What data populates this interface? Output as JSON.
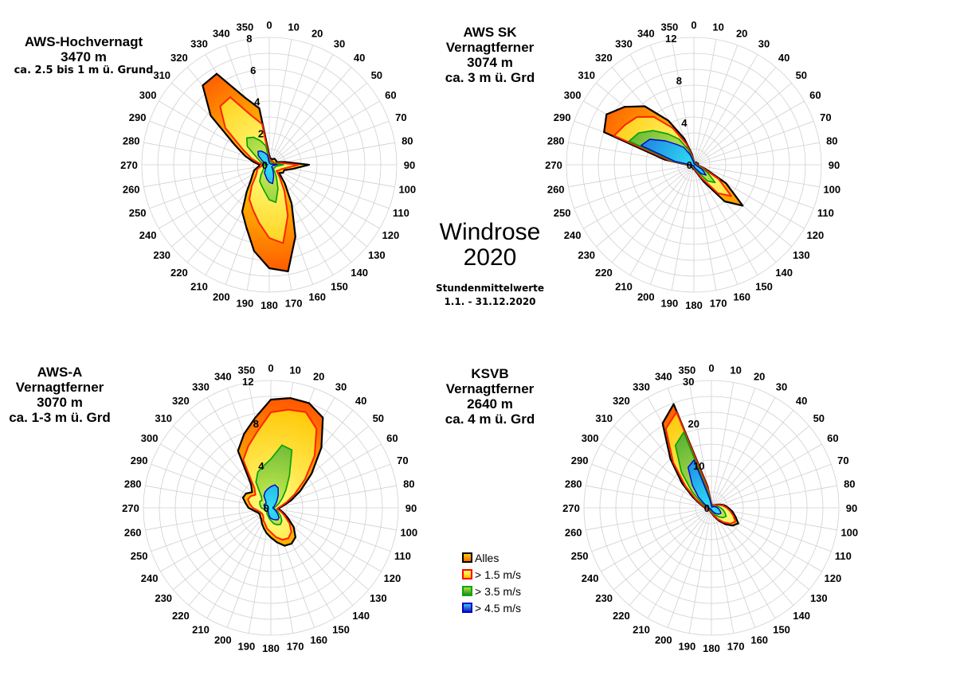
{
  "title": "Windrose",
  "year": "2020",
  "subtitle_line1": "Stundenmittelwerte",
  "subtitle_line2": "1.1. - 31.12.2020",
  "legend": [
    {
      "label": "Alles",
      "fill": "#ffa500",
      "stroke": "#000000"
    },
    {
      "label": "> 1.5 m/s",
      "fill": "#ffe000",
      "stroke": "#ff0000"
    },
    {
      "label": "> 3.5 m/s",
      "fill": "#44aa22",
      "stroke": "#00aa00"
    },
    {
      "label": "> 4.5 m/s",
      "fill": "#1133dd",
      "stroke": "#0000cc"
    }
  ],
  "chart_data": [
    {
      "type": "radar",
      "station": [
        "AWS-Hochvernagt",
        "3470 m",
        "ca. 2.5 bis 1 m ü. Grund"
      ],
      "direction_labels": [
        "0",
        "10",
        "20",
        "30",
        "40",
        "50",
        "60",
        "70",
        "80",
        "90",
        "100",
        "110",
        "120",
        "130",
        "140",
        "150",
        "160",
        "170",
        "180",
        "190",
        "200",
        "210",
        "220",
        "230",
        "240",
        "250",
        "260",
        "270",
        "280",
        "290",
        "300",
        "310",
        "320",
        "330",
        "340",
        "350"
      ],
      "rmax": 8,
      "radial_ticks": [
        "0",
        "2",
        "4",
        "6",
        "8"
      ],
      "series": [
        {
          "name": "Alles",
          "values": [
            0.6,
            0.4,
            0.4,
            0.4,
            0.5,
            0.5,
            0.5,
            0.5,
            1.0,
            2.5,
            1.5,
            1.0,
            1.0,
            0.8,
            1.5,
            2.8,
            4.8,
            6.8,
            6.5,
            5.5,
            4.2,
            3.4,
            2.2,
            1.5,
            1.2,
            1.0,
            0.7,
            0.6,
            1.0,
            1.6,
            2.5,
            4.8,
            6.5,
            6.6,
            4.5,
            3.6
          ]
        },
        {
          "name": "> 1.5 m/s",
          "values": [
            0.4,
            0.3,
            0.3,
            0.3,
            0.3,
            0.3,
            0.3,
            0.3,
            0.7,
            1.8,
            1.1,
            0.8,
            0.7,
            0.6,
            1.0,
            1.9,
            3.4,
            5.0,
            4.6,
            3.7,
            3.0,
            2.5,
            1.7,
            1.1,
            0.9,
            0.8,
            0.5,
            0.4,
            0.7,
            1.2,
            1.9,
            3.6,
            4.8,
            4.9,
            3.3,
            2.6
          ]
        },
        {
          "name": "> 3.5 m/s",
          "values": [
            0.2,
            0.2,
            0.2,
            0.2,
            0.2,
            0.2,
            0.2,
            0.2,
            0.4,
            0.9,
            0.5,
            0.4,
            0.4,
            0.3,
            0.5,
            0.9,
            1.6,
            2.4,
            2.2,
            1.7,
            1.4,
            1.2,
            0.8,
            0.5,
            0.4,
            0.4,
            0.3,
            0.2,
            0.4,
            0.6,
            0.9,
            1.8,
            2.2,
            2.0,
            1.6,
            1.2
          ]
        },
        {
          "name": "> 4.5 m/s",
          "values": [
            0.1,
            0.1,
            0.1,
            0.1,
            0.1,
            0.1,
            0.1,
            0.1,
            0.2,
            0.5,
            0.3,
            0.2,
            0.2,
            0.2,
            0.3,
            0.5,
            0.8,
            1.2,
            1.1,
            0.9,
            0.7,
            0.6,
            0.4,
            0.3,
            0.2,
            0.2,
            0.2,
            0.1,
            0.2,
            0.3,
            0.5,
            0.9,
            1.1,
            1.0,
            0.8,
            0.6
          ]
        }
      ]
    },
    {
      "type": "radar",
      "station": [
        "AWS SK",
        "Vernagtferner",
        "3074 m",
        "ca. 3 m ü. Grd"
      ],
      "direction_labels": [
        "0",
        "10",
        "20",
        "30",
        "40",
        "50",
        "60",
        "70",
        "80",
        "90",
        "100",
        "110",
        "120",
        "130",
        "140",
        "150",
        "160",
        "170",
        "180",
        "190",
        "200",
        "210",
        "220",
        "230",
        "240",
        "250",
        "260",
        "270",
        "280",
        "290",
        "300",
        "310",
        "320",
        "330",
        "340",
        "350"
      ],
      "rmax": 12,
      "radial_ticks": [
        "0",
        "4",
        "8",
        "12"
      ],
      "series": [
        {
          "name": "Alles",
          "values": [
            0.3,
            0.2,
            0.2,
            0.2,
            0.3,
            0.3,
            0.3,
            0.4,
            0.4,
            0.3,
            0.5,
            1.2,
            3.5,
            6.0,
            4.5,
            1.8,
            0.8,
            0.5,
            0.4,
            0.4,
            0.3,
            0.3,
            0.3,
            0.3,
            0.3,
            0.3,
            0.4,
            0.6,
            2.8,
            9.0,
            9.5,
            8.5,
            7.2,
            4.8,
            2.6,
            1.0
          ]
        },
        {
          "name": "> 1.5 m/s",
          "values": [
            0.2,
            0.2,
            0.2,
            0.2,
            0.2,
            0.2,
            0.2,
            0.3,
            0.3,
            0.2,
            0.4,
            0.9,
            2.7,
            4.6,
            3.5,
            1.4,
            0.6,
            0.4,
            0.3,
            0.3,
            0.2,
            0.2,
            0.2,
            0.2,
            0.2,
            0.2,
            0.3,
            0.5,
            2.3,
            8.0,
            7.5,
            7.0,
            5.9,
            4.0,
            2.1,
            0.8
          ]
        },
        {
          "name": "> 3.5 m/s",
          "values": [
            0.2,
            0.1,
            0.1,
            0.1,
            0.2,
            0.2,
            0.2,
            0.2,
            0.2,
            0.2,
            0.3,
            0.5,
            1.5,
            2.6,
            2.0,
            0.8,
            0.4,
            0.3,
            0.2,
            0.2,
            0.2,
            0.2,
            0.2,
            0.2,
            0.2,
            0.2,
            0.2,
            0.4,
            2.0,
            6.5,
            6.0,
            5.0,
            3.8,
            2.8,
            1.5,
            0.5
          ]
        },
        {
          "name": "> 4.5 m/s",
          "values": [
            0.1,
            0.1,
            0.1,
            0.1,
            0.1,
            0.1,
            0.1,
            0.1,
            0.1,
            0.1,
            0.2,
            0.3,
            0.9,
            1.5,
            1.1,
            0.5,
            0.3,
            0.2,
            0.1,
            0.1,
            0.1,
            0.1,
            0.1,
            0.1,
            0.1,
            0.1,
            0.2,
            0.3,
            1.8,
            5.3,
            4.8,
            3.5,
            2.5,
            1.9,
            1.0,
            0.3
          ]
        }
      ]
    },
    {
      "type": "radar",
      "station": [
        "AWS-A",
        "Vernagtferner",
        "3070 m",
        "ca. 1-3 m ü. Grd"
      ],
      "direction_labels": [
        "0",
        "10",
        "20",
        "30",
        "40",
        "50",
        "60",
        "70",
        "80",
        "90",
        "100",
        "110",
        "120",
        "130",
        "140",
        "150",
        "160",
        "170",
        "180",
        "190",
        "200",
        "210",
        "220",
        "230",
        "240",
        "250",
        "260",
        "270",
        "280",
        "290",
        "300",
        "310",
        "320",
        "330",
        "340",
        "350"
      ],
      "rmax": 12,
      "radial_ticks": [
        "0",
        "4",
        "8",
        "12"
      ],
      "series": [
        {
          "name": "Alles",
          "values": [
            10.2,
            10.5,
            10.5,
            9.8,
            7.4,
            5.0,
            3.2,
            2.0,
            1.2,
            0.8,
            0.8,
            1.2,
            1.8,
            2.8,
            3.6,
            3.9,
            3.8,
            3.3,
            2.8,
            2.4,
            2.0,
            1.7,
            1.4,
            1.3,
            1.2,
            1.3,
            1.6,
            2.1,
            2.4,
            2.8,
            2.7,
            2.3,
            2.9,
            6.2,
            7.4,
            8.6
          ]
        },
        {
          "name": "> 1.5 m/s",
          "values": [
            9.0,
            9.4,
            9.6,
            8.6,
            6.4,
            4.2,
            2.6,
            1.6,
            1.0,
            0.7,
            0.6,
            1.0,
            1.5,
            2.3,
            3.0,
            3.3,
            3.2,
            2.8,
            2.3,
            2.0,
            1.6,
            1.4,
            1.1,
            1.0,
            1.0,
            1.1,
            1.3,
            1.7,
            2.0,
            2.3,
            2.2,
            1.9,
            2.4,
            5.2,
            6.2,
            7.3
          ]
        },
        {
          "name": "> 3.5 m/s",
          "values": [
            4.6,
            6.0,
            5.8,
            3.5,
            2.2,
            1.4,
            0.9,
            0.6,
            0.4,
            0.3,
            0.3,
            0.5,
            0.8,
            1.2,
            1.6,
            1.8,
            1.7,
            1.5,
            1.2,
            1.0,
            0.8,
            0.7,
            0.6,
            0.5,
            0.5,
            0.6,
            0.7,
            0.9,
            1.0,
            1.1,
            1.2,
            1.1,
            1.4,
            2.8,
            3.6,
            4.0
          ]
        },
        {
          "name": "> 4.5 m/s",
          "values": [
            2.0,
            2.2,
            2.0,
            1.4,
            0.9,
            0.6,
            0.4,
            0.3,
            0.2,
            0.2,
            0.2,
            0.3,
            0.5,
            0.8,
            1.2,
            1.3,
            1.2,
            1.1,
            1.0,
            0.8,
            0.6,
            0.5,
            0.4,
            0.4,
            0.3,
            0.3,
            0.4,
            0.5,
            0.6,
            0.7,
            0.7,
            0.6,
            0.7,
            1.3,
            1.6,
            1.8
          ]
        }
      ]
    },
    {
      "type": "radar",
      "station": [
        "KSVB",
        "Vernagtferner",
        "2640 m",
        "ca. 4 m ü. Grd"
      ],
      "direction_labels": [
        "0",
        "10",
        "20",
        "30",
        "40",
        "50",
        "60",
        "70",
        "80",
        "90",
        "100",
        "110",
        "120",
        "130",
        "140",
        "150",
        "160",
        "170",
        "180",
        "190",
        "200",
        "210",
        "220",
        "230",
        "240",
        "250",
        "260",
        "270",
        "280",
        "290",
        "300",
        "310",
        "320",
        "330",
        "340",
        "350"
      ],
      "rmax": 30,
      "radial_ticks": [
        "0",
        "10",
        "20",
        "30"
      ],
      "series": [
        {
          "name": "Alles",
          "values": [
            1.0,
            0.8,
            0.6,
            0.6,
            0.8,
            1.0,
            1.5,
            2.3,
            3.2,
            4.0,
            5.0,
            6.0,
            7.3,
            6.5,
            5.0,
            3.5,
            2.3,
            1.6,
            1.2,
            1.0,
            0.8,
            0.7,
            0.7,
            0.7,
            0.8,
            1.0,
            1.2,
            1.5,
            2.0,
            3.0,
            5.0,
            9.0,
            15.0,
            23.0,
            26.0,
            5.0
          ]
        },
        {
          "name": "> 1.5 m/s",
          "values": [
            0.9,
            0.7,
            0.5,
            0.5,
            0.7,
            0.9,
            1.3,
            2.0,
            2.8,
            3.6,
            4.5,
            5.5,
            6.5,
            5.8,
            4.4,
            3.1,
            2.0,
            1.4,
            1.0,
            0.9,
            0.7,
            0.6,
            0.6,
            0.6,
            0.7,
            0.9,
            1.1,
            1.3,
            1.7,
            2.6,
            4.4,
            8.0,
            14.0,
            21.5,
            24.0,
            4.5
          ]
        },
        {
          "name": "> 3.5 m/s",
          "values": [
            0.6,
            0.5,
            0.3,
            0.3,
            0.4,
            0.6,
            0.8,
            1.2,
            1.6,
            2.2,
            2.8,
            3.4,
            4.0,
            3.6,
            2.8,
            2.0,
            1.3,
            0.9,
            0.7,
            0.6,
            0.5,
            0.4,
            0.4,
            0.4,
            0.5,
            0.6,
            0.7,
            0.9,
            1.1,
            1.7,
            3.0,
            6.0,
            11.0,
            17.0,
            19.0,
            3.0
          ]
        },
        {
          "name": "> 4.5 m/s",
          "values": [
            0.4,
            0.3,
            0.2,
            0.2,
            0.3,
            0.4,
            0.5,
            0.8,
            1.1,
            1.4,
            1.8,
            2.2,
            2.6,
            2.3,
            1.8,
            1.3,
            0.9,
            0.6,
            0.5,
            0.4,
            0.3,
            0.3,
            0.3,
            0.3,
            0.3,
            0.4,
            0.5,
            0.6,
            0.8,
            1.1,
            2.0,
            4.0,
            7.0,
            11.0,
            12.0,
            2.0
          ]
        }
      ]
    }
  ]
}
